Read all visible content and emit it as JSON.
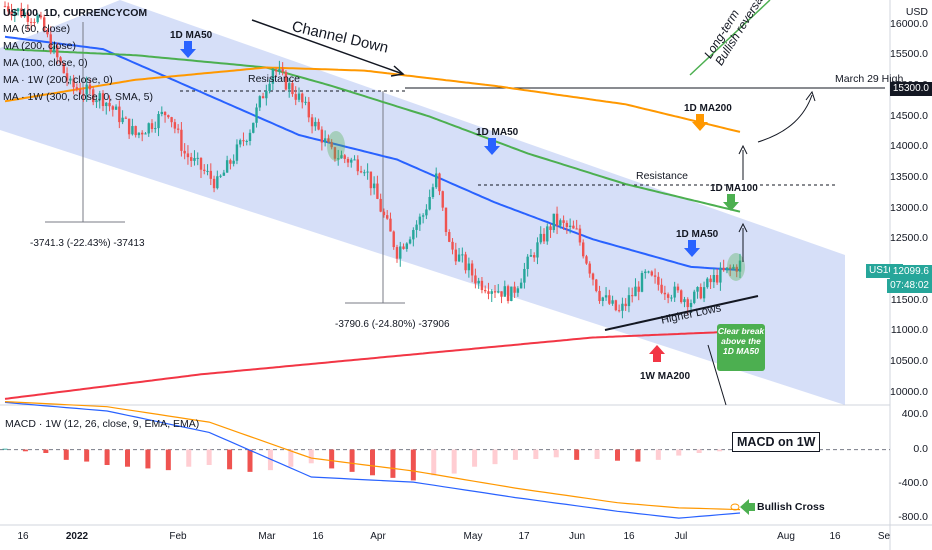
{
  "header": {
    "symbol_line": "US 100, 1D, CURRENCYCOM",
    "indicators": [
      "MA (50, close)",
      "MA (200, close)",
      "MA (100, close, 0)",
      "MA · 1W (200, close, 0)",
      "MA · 1W (300, close, 0, SMA, 5)"
    ]
  },
  "price_axis": {
    "currency": "USD",
    "ticks": [
      "16000.0",
      "15500.0",
      "15000.0",
      "14500.0",
      "14000.0",
      "13500.0",
      "13000.0",
      "12500.0",
      "12000.0",
      "11500.0",
      "11000.0",
      "10500.0",
      "10000.0"
    ],
    "last_price_tag": "15300.0",
    "symbol_tag": "US100",
    "current_price": "12099.6",
    "countdown": "07:48:02"
  },
  "macd_axis": {
    "ticks": [
      "400.0",
      "0.0",
      "-400.0",
      "-800.0"
    ]
  },
  "x_axis": {
    "ticks": [
      "16",
      "2022",
      "Feb",
      "Mar",
      "16",
      "Apr",
      "May",
      "17",
      "Jun",
      "16",
      "Jul",
      "Aug",
      "16",
      "Se"
    ]
  },
  "annotations": {
    "channel_down": "Channel Down",
    "long_term_reversal": "Long-term Bullish reversal",
    "march29_high": "March 29 High",
    "resistance_1": "Resistance",
    "resistance_2": "Resistance",
    "ma50_1": "1D MA50",
    "ma50_2": "1D MA50",
    "ma50_3": "1D MA50",
    "ma200": "1D MA200",
    "ma100": "1D MA100",
    "w_ma200": "1W MA200",
    "higher_lows": "Higher Lows",
    "drop_1": "-3741.3 (-22.43%) -37413",
    "drop_2": "-3790.6 (-24.80%) -37906",
    "break_box": "Clear break above the 1D MA50",
    "macd_title": "MACD · 1W (12, 26, close, 9, EMA, EMA)",
    "macd_label": "MACD on 1W",
    "bullish_cross": "Bullish Cross"
  },
  "colors": {
    "bull": "#26a69a",
    "bear": "#ef5350",
    "ma50": "#2962ff",
    "ma100": "#4caf50",
    "ma200": "#ff9800",
    "w_ma200": "#f23645",
    "channel": "#c5d1f5",
    "macd_line": "#2962ff",
    "signal_line": "#ff9800"
  },
  "chart_data": [
    {
      "type": "candlestick",
      "title": "US 100, 1D, CURRENCYCOM",
      "ylabel": "USD",
      "ylim": [
        9800,
        16400
      ],
      "x_ticks": [
        "16",
        "2022",
        "Feb",
        "Mar",
        "16",
        "Apr",
        "May",
        "17",
        "Jun",
        "16",
        "Jul",
        "Aug",
        "16",
        "Se"
      ],
      "series": [
        {
          "name": "US 100",
          "approx_path": [
            [
              0,
              16300
            ],
            [
              10,
              16100
            ],
            [
              20,
              15000
            ],
            [
              30,
              14800
            ],
            [
              40,
              14200
            ],
            [
              50,
              14600
            ],
            [
              55,
              13900
            ],
            [
              65,
              13400
            ],
            [
              75,
              14300
            ],
            [
              82,
              15300
            ],
            [
              90,
              14800
            ],
            [
              100,
              13900
            ],
            [
              110,
              13700
            ],
            [
              120,
              12300
            ],
            [
              128,
              12900
            ],
            [
              132,
              13500
            ],
            [
              136,
              12400
            ],
            [
              145,
              11800
            ],
            [
              155,
              11600
            ],
            [
              162,
              12300
            ],
            [
              168,
              12800
            ],
            [
              175,
              12600
            ],
            [
              182,
              11600
            ],
            [
              188,
              11300
            ],
            [
              196,
              11900
            ],
            [
              202,
              11700
            ],
            [
              210,
              11500
            ],
            [
              218,
              11900
            ],
            [
              222,
              12000
            ],
            [
              225,
              12099.6
            ]
          ]
        },
        {
          "name": "MA (50, close)",
          "approx_path": [
            [
              0,
              15800
            ],
            [
              30,
              15600
            ],
            [
              60,
              14900
            ],
            [
              90,
              14200
            ],
            [
              120,
              13800
            ],
            [
              150,
              13100
            ],
            [
              180,
              12500
            ],
            [
              210,
              12050
            ],
            [
              225,
              12000
            ]
          ]
        },
        {
          "name": "MA (100, close, 0)",
          "approx_path": [
            [
              0,
              15600
            ],
            [
              40,
              15500
            ],
            [
              80,
              15300
            ],
            [
              100,
              15000
            ],
            [
              130,
              14500
            ],
            [
              160,
              13900
            ],
            [
              190,
              13400
            ],
            [
              225,
              12950
            ]
          ]
        },
        {
          "name": "MA (200, close)",
          "approx_path": [
            [
              0,
              14750
            ],
            [
              40,
              15100
            ],
            [
              80,
              15300
            ],
            [
              110,
              15250
            ],
            [
              150,
              15000
            ],
            [
              190,
              14700
            ],
            [
              225,
              14250
            ]
          ]
        },
        {
          "name": "MA · 1W (200, close, 0)",
          "approx_path": [
            [
              0,
              9900
            ],
            [
              60,
              10300
            ],
            [
              120,
              10600
            ],
            [
              180,
              10900
            ],
            [
              225,
              11000
            ]
          ]
        }
      ],
      "levels": {
        "march29_high": 15300,
        "resistance_dec": 15300,
        "resistance_jul": 13600
      },
      "drops": [
        {
          "label": "-3741.3 (-22.43%) -37413",
          "from": 16680,
          "to": 12940
        },
        {
          "label": "-3790.6 (-24.80%) -37906",
          "from": 15280,
          "to": 11490
        }
      ]
    },
    {
      "type": "bar",
      "title": "MACD · 1W (12, 26, close, 9, EMA, EMA)",
      "ylim": [
        -880,
        520
      ],
      "series": [
        {
          "name": "histogram",
          "values": [
            10,
            -20,
            -40,
            -120,
            -140,
            -180,
            -200,
            -220,
            -240,
            -200,
            -180,
            -230,
            -260,
            -240,
            -200,
            -160,
            -220,
            -260,
            -300,
            -330,
            -360,
            -300,
            -280,
            -200,
            -170,
            -120,
            -110,
            -90,
            -120,
            -110,
            -130,
            -140,
            -120,
            -70,
            -40,
            -20
          ]
        },
        {
          "name": "MACD",
          "approx_path": [
            [
              0,
              550
            ],
            [
              5,
              450
            ],
            [
              10,
              200
            ],
            [
              15,
              -320
            ],
            [
              20,
              -380
            ],
            [
              25,
              -560
            ],
            [
              30,
              -720
            ],
            [
              33,
              -800
            ],
            [
              36,
              -740
            ]
          ]
        },
        {
          "name": "Signal",
          "approx_path": [
            [
              0,
              560
            ],
            [
              5,
              500
            ],
            [
              10,
              320
            ],
            [
              15,
              -100
            ],
            [
              20,
              -250
            ],
            [
              25,
              -450
            ],
            [
              30,
              -620
            ],
            [
              33,
              -680
            ],
            [
              36,
              -700
            ]
          ]
        }
      ]
    }
  ]
}
